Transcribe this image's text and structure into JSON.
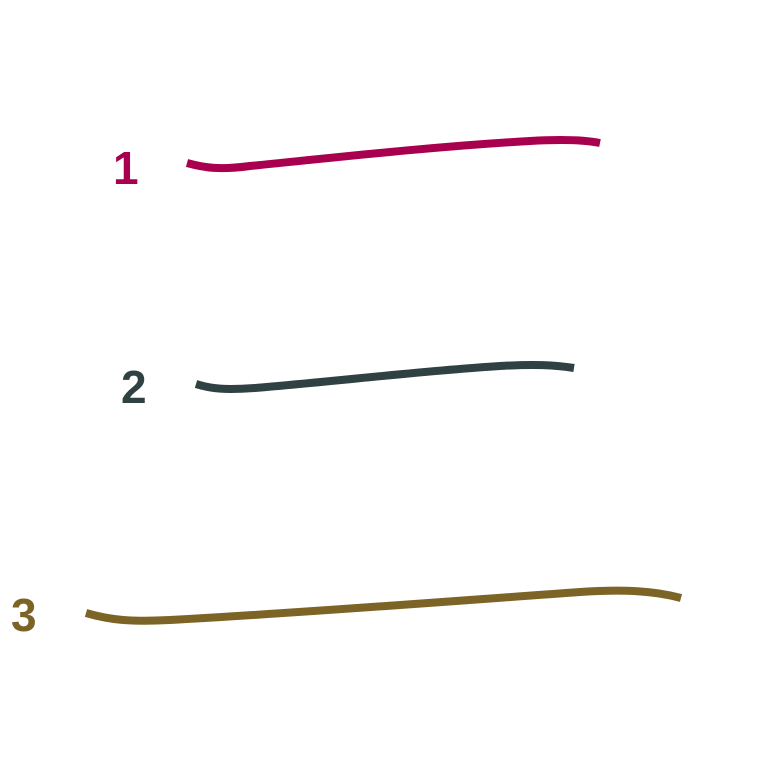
{
  "strokes": [
    {
      "label": "1",
      "color": "#a8004f"
    },
    {
      "label": "2",
      "color": "#2f4143"
    },
    {
      "label": "3",
      "color": "#7b6426"
    }
  ]
}
